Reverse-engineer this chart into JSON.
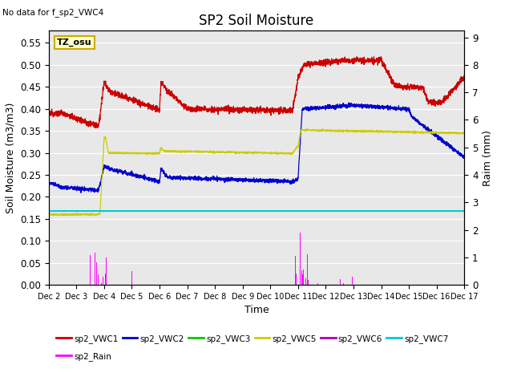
{
  "title": "SP2 Soil Moisture",
  "subtitle": "No data for f_sp2_VWC4",
  "xlabel": "Time",
  "ylabel_left": "Soil Moisture (m3/m3)",
  "ylabel_right": "Raim (mm)",
  "ylim_left": [
    0.0,
    0.5775
  ],
  "ylim_right": [
    0.0,
    9.24
  ],
  "yticks_left": [
    0.0,
    0.05,
    0.1,
    0.15,
    0.2,
    0.25,
    0.3,
    0.35,
    0.4,
    0.45,
    0.5,
    0.55
  ],
  "yticks_right": [
    0.0,
    1.0,
    2.0,
    3.0,
    4.0,
    5.0,
    6.0,
    7.0,
    8.0,
    9.0
  ],
  "xtick_labels": [
    "Dec 2",
    "Dec 3",
    "Dec 4",
    "Dec 5",
    "Dec 6",
    "Dec 7",
    "Dec 8",
    "Dec 9",
    "Dec 10",
    "Dec 11",
    "Dec 12",
    "Dec 13",
    "Dec 14",
    "Dec 15",
    "Dec 16",
    "Dec 17"
  ],
  "xlim": [
    0,
    15
  ],
  "colors": {
    "sp2_VWC1": "#cc0000",
    "sp2_VWC2": "#0000cc",
    "sp2_VWC3": "#00cc00",
    "sp2_VWC5": "#cccc00",
    "sp2_VWC6": "#aa00aa",
    "sp2_VWC7": "#00cccc",
    "sp2_Rain": "#ff00ff"
  },
  "bg_color": "#e8e8e8",
  "annotation_box": {
    "text": "TZ_osu",
    "bg": "#ffffcc",
    "edge": "#ccaa00"
  },
  "figsize": [
    6.4,
    4.8
  ],
  "dpi": 100
}
